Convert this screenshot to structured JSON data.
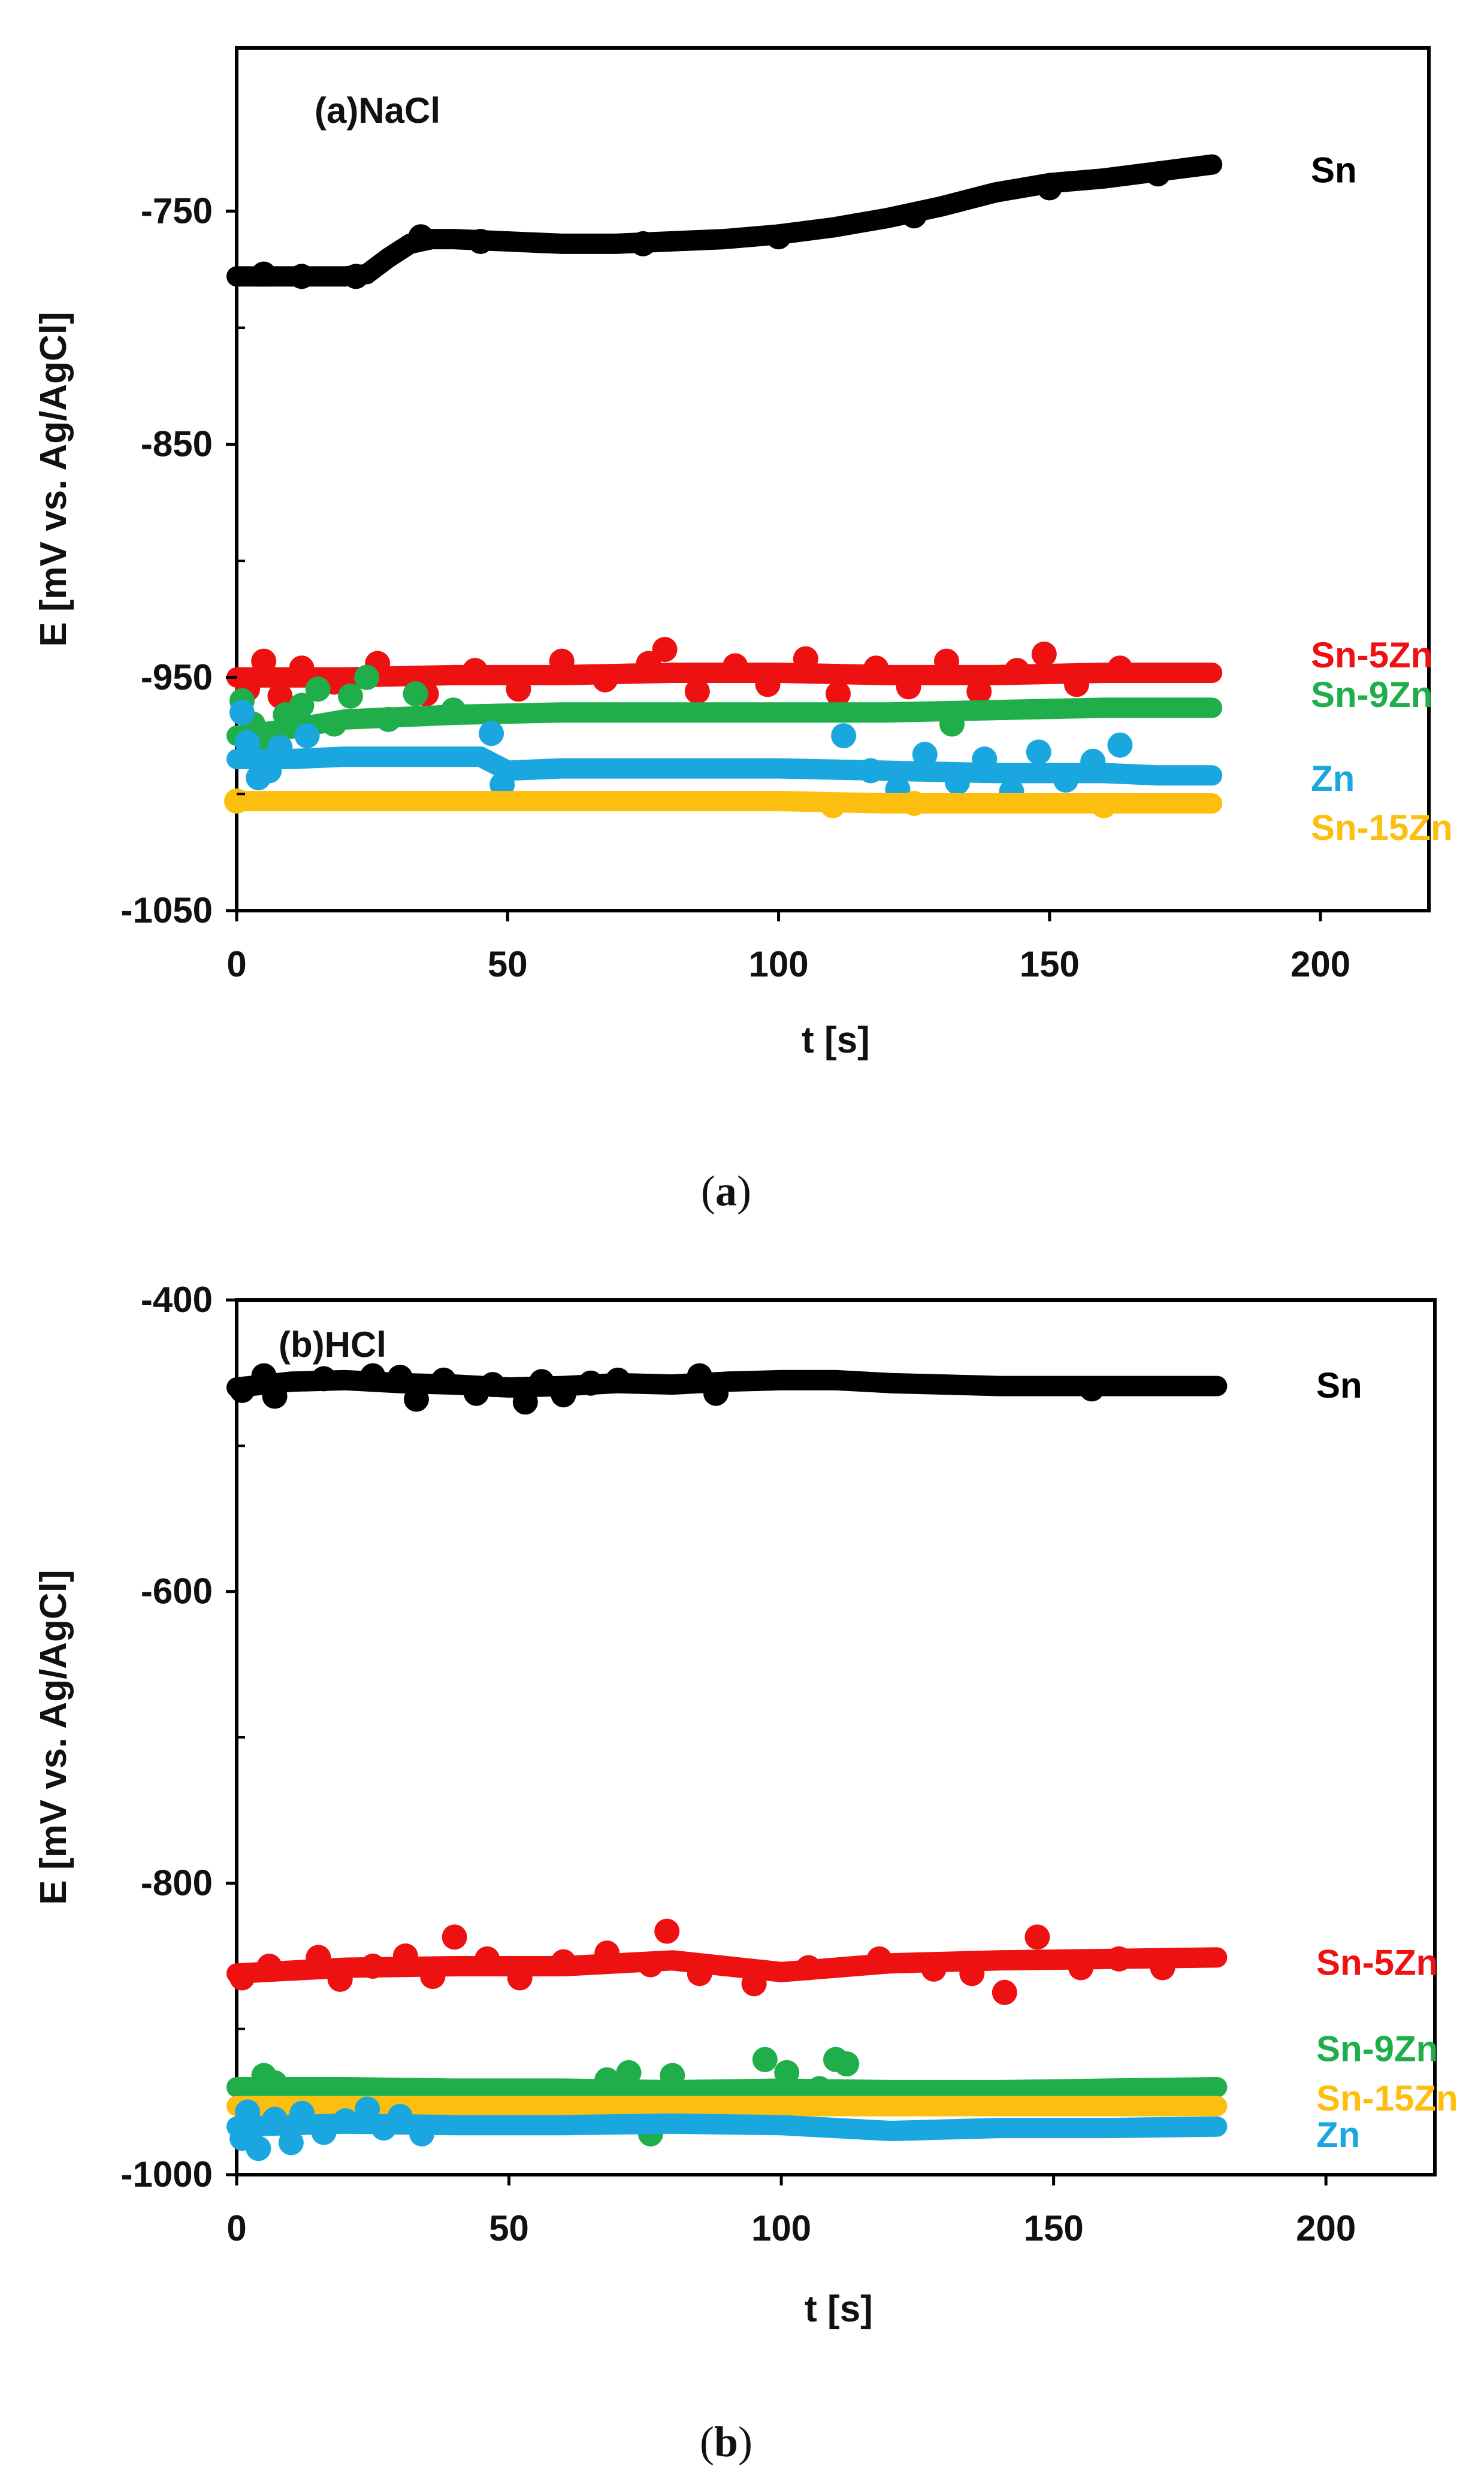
{
  "chart_data": [
    {
      "type": "scatter",
      "title": "(a)NaCl",
      "caption_letter": "a",
      "xlabel": "t [s]",
      "ylabel": "E [mV vs. Ag/AgCl]",
      "xlim": [
        0,
        220
      ],
      "ylim": [
        -1050,
        -680
      ],
      "x_ticks": [
        0,
        50,
        100,
        150,
        200
      ],
      "y_ticks": [
        -750,
        -850,
        -950,
        -1050
      ],
      "y_minor_ticks": [
        -800,
        -900,
        -1000
      ],
      "grid": false,
      "series": [
        {
          "name": "Sn",
          "color": "#000000",
          "label_value": -732,
          "x": [
            0,
            10,
            20,
            24,
            28,
            32,
            36,
            40,
            50,
            60,
            70,
            80,
            90,
            100,
            110,
            120,
            130,
            140,
            150,
            160,
            170,
            180
          ],
          "y": [
            -778,
            -778,
            -778,
            -777,
            -770,
            -764,
            -762,
            -762,
            -763,
            -764,
            -764,
            -763,
            -762,
            -760,
            -757,
            -753,
            -748,
            -742,
            -738,
            -736,
            -733,
            -730
          ],
          "scatter": [
            [
              5,
              -777
            ],
            [
              12,
              -778
            ],
            [
              22,
              -778
            ],
            [
              34,
              -761
            ],
            [
              45,
              -763
            ],
            [
              75,
              -764
            ],
            [
              100,
              -761
            ],
            [
              125,
              -752
            ],
            [
              150,
              -740
            ],
            [
              170,
              -734
            ]
          ]
        },
        {
          "name": "Sn-5Zn",
          "color": "#ee1111",
          "label_value": -940,
          "x": [
            0,
            20,
            40,
            60,
            80,
            100,
            120,
            140,
            160,
            180
          ],
          "y": [
            -950,
            -950,
            -949,
            -949,
            -948,
            -948,
            -949,
            -949,
            -948,
            -948
          ],
          "scatter": [
            [
              2,
              -955
            ],
            [
              5,
              -943
            ],
            [
              8,
              -958
            ],
            [
              12,
              -946
            ],
            [
              18,
              -952
            ],
            [
              26,
              -944
            ],
            [
              35,
              -957
            ],
            [
              44,
              -947
            ],
            [
              52,
              -955
            ],
            [
              60,
              -943
            ],
            [
              68,
              -951
            ],
            [
              76,
              -944
            ],
            [
              79,
              -938
            ],
            [
              85,
              -956
            ],
            [
              92,
              -945
            ],
            [
              98,
              -953
            ],
            [
              105,
              -942
            ],
            [
              111,
              -957
            ],
            [
              118,
              -946
            ],
            [
              124,
              -954
            ],
            [
              131,
              -943
            ],
            [
              137,
              -956
            ],
            [
              144,
              -947
            ],
            [
              149,
              -940
            ],
            [
              155,
              -953
            ],
            [
              163,
              -946
            ]
          ]
        },
        {
          "name": "Sn-9Zn",
          "color": "#1fae4a",
          "label_value": -957,
          "x": [
            0,
            10,
            20,
            30,
            40,
            60,
            80,
            100,
            120,
            140,
            160,
            180
          ],
          "y": [
            -975,
            -972,
            -968,
            -967,
            -966,
            -965,
            -965,
            -965,
            -965,
            -964,
            -963,
            -963
          ],
          "scatter": [
            [
              1,
              -960
            ],
            [
              3,
              -970
            ],
            [
              6,
              -978
            ],
            [
              9,
              -966
            ],
            [
              12,
              -962
            ],
            [
              15,
              -955
            ],
            [
              18,
              -970
            ],
            [
              21,
              -958
            ],
            [
              24,
              -950
            ],
            [
              28,
              -968
            ],
            [
              33,
              -957
            ],
            [
              40,
              -964
            ],
            [
              132,
              -970
            ]
          ]
        },
        {
          "name": "Zn",
          "color": "#1aa7e0",
          "label_value": -993,
          "x": [
            0,
            10,
            20,
            30,
            45,
            50,
            60,
            80,
            100,
            120,
            140,
            160,
            170,
            180
          ],
          "y": [
            -985,
            -985,
            -984,
            -984,
            -984,
            -990,
            -989,
            -989,
            -989,
            -990,
            -991,
            -991,
            -992,
            -992
          ],
          "scatter": [
            [
              1,
              -965
            ],
            [
              2,
              -978
            ],
            [
              4,
              -993
            ],
            [
              6,
              -990
            ],
            [
              8,
              -980
            ],
            [
              13,
              -975
            ],
            [
              47,
              -974
            ],
            [
              49,
              -996
            ],
            [
              112,
              -975
            ],
            [
              117,
              -990
            ],
            [
              122,
              -998
            ],
            [
              127,
              -983
            ],
            [
              133,
              -995
            ],
            [
              138,
              -985
            ],
            [
              143,
              -999
            ],
            [
              148,
              -982
            ],
            [
              153,
              -994
            ],
            [
              158,
              -986
            ],
            [
              163,
              -979
            ]
          ]
        },
        {
          "name": "Sn-15Zn",
          "color": "#fdbf0f",
          "label_value": -1014,
          "x": [
            0,
            20,
            40,
            60,
            80,
            100,
            120,
            140,
            160,
            180
          ],
          "y": [
            -1003,
            -1003,
            -1003,
            -1003,
            -1003,
            -1003,
            -1004,
            -1004,
            -1004,
            -1004
          ],
          "scatter": [
            [
              0,
              -1003
            ],
            [
              110,
              -1005
            ],
            [
              125,
              -1004
            ],
            [
              160,
              -1005
            ]
          ]
        }
      ]
    },
    {
      "type": "scatter",
      "title": "(b)HCl",
      "caption_letter": "b",
      "xlabel": "t [s]",
      "ylabel": "E [mV vs. Ag/AgCl]",
      "xlim": [
        0,
        220
      ],
      "ylim": [
        -1000,
        -400
      ],
      "x_ticks": [
        0,
        50,
        100,
        150,
        200
      ],
      "y_ticks": [
        -400,
        -600,
        -800,
        -1000
      ],
      "y_minor_ticks": [
        -500,
        -700,
        -900
      ],
      "grid": false,
      "series": [
        {
          "name": "Sn",
          "color": "#000000",
          "label_value": -458,
          "x": [
            0,
            10,
            20,
            30,
            40,
            50,
            60,
            70,
            80,
            90,
            100,
            110,
            120,
            130,
            140,
            150,
            160,
            170,
            180
          ],
          "y": [
            -460,
            -456,
            -455,
            -457,
            -458,
            -460,
            -459,
            -457,
            -458,
            -456,
            -455,
            -455,
            -457,
            -458,
            -459,
            -459,
            -459,
            -459,
            -459
          ],
          "scatter": [
            [
              1,
              -462
            ],
            [
              5,
              -452
            ],
            [
              7,
              -466
            ],
            [
              16,
              -454
            ],
            [
              25,
              -452
            ],
            [
              30,
              -453
            ],
            [
              33,
              -468
            ],
            [
              38,
              -455
            ],
            [
              44,
              -464
            ],
            [
              47,
              -458
            ],
            [
              53,
              -470
            ],
            [
              56,
              -456
            ],
            [
              60,
              -465
            ],
            [
              65,
              -457
            ],
            [
              70,
              -455
            ],
            [
              85,
              -452
            ],
            [
              88,
              -464
            ],
            [
              157,
              -461
            ]
          ]
        },
        {
          "name": "Sn-5Zn",
          "color": "#ee1111",
          "label_value": -854,
          "x": [
            0,
            20,
            40,
            60,
            80,
            100,
            120,
            140,
            160,
            180
          ],
          "y": [
            -862,
            -858,
            -857,
            -857,
            -853,
            -861,
            -855,
            -853,
            -852,
            -851
          ],
          "scatter": [
            [
              1,
              -865
            ],
            [
              6,
              -857
            ],
            [
              15,
              -851
            ],
            [
              19,
              -866
            ],
            [
              25,
              -857
            ],
            [
              31,
              -850
            ],
            [
              36,
              -864
            ],
            [
              40,
              -837
            ],
            [
              46,
              -852
            ],
            [
              52,
              -865
            ],
            [
              60,
              -854
            ],
            [
              68,
              -848
            ],
            [
              76,
              -856
            ],
            [
              79,
              -833
            ],
            [
              85,
              -862
            ],
            [
              95,
              -869
            ],
            [
              105,
              -858
            ],
            [
              118,
              -852
            ],
            [
              128,
              -859
            ],
            [
              135,
              -862
            ],
            [
              141,
              -875
            ],
            [
              147,
              -837
            ],
            [
              155,
              -858
            ],
            [
              162,
              -852
            ],
            [
              170,
              -858
            ]
          ]
        },
        {
          "name": "Sn-9Zn",
          "color": "#1fae4a",
          "label_value": -913,
          "x": [
            0,
            20,
            40,
            60,
            80,
            100,
            120,
            140,
            160,
            180
          ],
          "y": [
            -940,
            -940,
            -941,
            -941,
            -942,
            -941,
            -942,
            -942,
            -941,
            -940
          ],
          "scatter": [
            [
              5,
              -932
            ],
            [
              7,
              -937
            ],
            [
              45,
              -944
            ],
            [
              68,
              -935
            ],
            [
              72,
              -930
            ],
            [
              76,
              -972
            ],
            [
              80,
              -932
            ],
            [
              97,
              -921
            ],
            [
              101,
              -930
            ],
            [
              107,
              -941
            ],
            [
              110,
              -921
            ],
            [
              112,
              -924
            ],
            [
              116,
              -945
            ]
          ]
        },
        {
          "name": "Sn-15Zn",
          "color": "#fdbf0f",
          "label_value": -947,
          "x": [
            0,
            20,
            40,
            60,
            80,
            100,
            120,
            140,
            160,
            180
          ],
          "y": [
            -953,
            -953,
            -953,
            -953,
            -953,
            -953,
            -953,
            -953,
            -953,
            -953
          ],
          "scatter": []
        },
        {
          "name": "Zn",
          "color": "#1aa7e0",
          "label_value": -972,
          "x": [
            0,
            20,
            40,
            60,
            80,
            100,
            120,
            140,
            160,
            180
          ],
          "y": [
            -967,
            -965,
            -966,
            -966,
            -965,
            -966,
            -970,
            -968,
            -968,
            -967
          ],
          "scatter": [
            [
              1,
              -975
            ],
            [
              2,
              -957
            ],
            [
              4,
              -982
            ],
            [
              7,
              -962
            ],
            [
              10,
              -978
            ],
            [
              12,
              -958
            ],
            [
              16,
              -971
            ],
            [
              20,
              -963
            ],
            [
              24,
              -955
            ],
            [
              27,
              -968
            ],
            [
              30,
              -960
            ],
            [
              34,
              -972
            ]
          ]
        }
      ]
    }
  ]
}
